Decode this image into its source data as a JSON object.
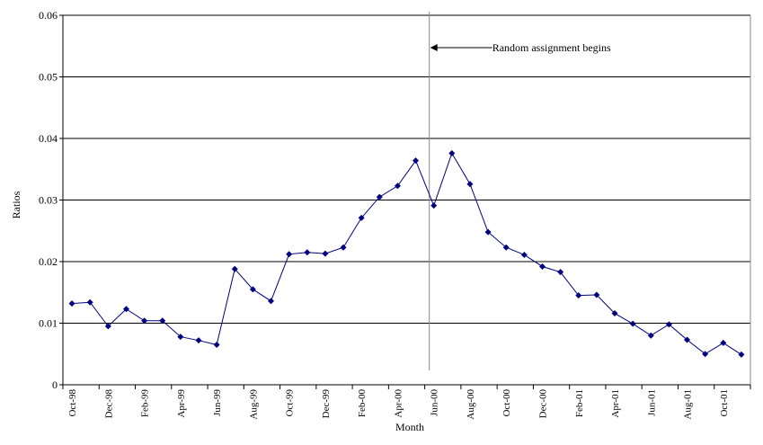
{
  "chart_data": {
    "type": "line",
    "title": "",
    "xlabel": "Month",
    "ylabel": "Ratios",
    "ylim": [
      0,
      0.06
    ],
    "yticks": [
      "0",
      "0.01",
      "0.02",
      "0.03",
      "0.04",
      "0.05",
      "0.06"
    ],
    "grid": "horizontal",
    "line_color": "#000080",
    "categories": [
      "Oct-98",
      "Nov-98",
      "Dec-98",
      "Jan-99",
      "Feb-99",
      "Mar-99",
      "Apr-99",
      "May-99",
      "Jun-99",
      "Jul-99",
      "Aug-99",
      "Sep-99",
      "Oct-99",
      "Nov-99",
      "Dec-99",
      "Jan-00",
      "Feb-00",
      "Mar-00",
      "Apr-00",
      "May-00",
      "Jun-00",
      "Jul-00",
      "Aug-00",
      "Sep-00",
      "Oct-00",
      "Nov-00",
      "Dec-00",
      "Jan-01",
      "Feb-01",
      "Mar-01",
      "Apr-01",
      "May-01",
      "Jun-01",
      "Jul-01",
      "Aug-01",
      "Sep-01",
      "Oct-01",
      "Nov-01"
    ],
    "tick_labels": [
      "Oct-98",
      "Dec-98",
      "Feb-99",
      "Apr-99",
      "Jun-99",
      "Aug-99",
      "Oct-99",
      "Dec-99",
      "Feb-00",
      "Apr-00",
      "Jun-00",
      "Aug-00",
      "Oct-00",
      "Dec-00",
      "Feb-01",
      "Apr-01",
      "Jun-01",
      "Aug-01",
      "Oct-01"
    ],
    "values": [
      0.0132,
      0.0134,
      0.0095,
      0.0123,
      0.0104,
      0.0104,
      0.0078,
      0.0072,
      0.0065,
      0.0188,
      0.0155,
      0.0136,
      0.0212,
      0.0215,
      0.0213,
      0.0223,
      0.0271,
      0.0305,
      0.0323,
      0.0364,
      0.0291,
      0.0376,
      0.0326,
      0.0248,
      0.0223,
      0.0211,
      0.0192,
      0.0183,
      0.0145,
      0.0146,
      0.0116,
      0.0099,
      0.008,
      0.0098,
      0.0073,
      0.005,
      0.0068,
      0.0049
    ],
    "annotation": {
      "text": "Random assignment begins",
      "at_category": "Jun-00"
    }
  }
}
